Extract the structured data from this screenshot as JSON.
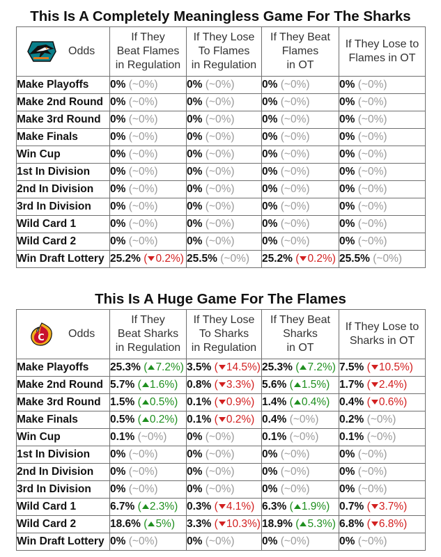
{
  "sharks": {
    "title": "This Is A Completely Meaningless Game For The Sharks",
    "logo_icon": "sharks-logo-icon",
    "odds_label": "Odds",
    "headers": [
      [
        "If They",
        "Beat Flames",
        "in Regulation"
      ],
      [
        "If They Lose",
        "To Flames",
        "in Regulation"
      ],
      [
        "If They Beat",
        "Flames",
        "in OT"
      ],
      [
        "If They Lose to",
        "Flames in OT"
      ]
    ],
    "rows": [
      {
        "label": "Make Playoffs",
        "cells": [
          {
            "value": "0%",
            "dir": "none",
            "change": "~0%"
          },
          {
            "value": "0%",
            "dir": "none",
            "change": "~0%"
          },
          {
            "value": "0%",
            "dir": "none",
            "change": "~0%"
          },
          {
            "value": "0%",
            "dir": "none",
            "change": "~0%"
          }
        ]
      },
      {
        "label": "Make 2nd Round",
        "cells": [
          {
            "value": "0%",
            "dir": "none",
            "change": "~0%"
          },
          {
            "value": "0%",
            "dir": "none",
            "change": "~0%"
          },
          {
            "value": "0%",
            "dir": "none",
            "change": "~0%"
          },
          {
            "value": "0%",
            "dir": "none",
            "change": "~0%"
          }
        ]
      },
      {
        "label": "Make 3rd Round",
        "cells": [
          {
            "value": "0%",
            "dir": "none",
            "change": "~0%"
          },
          {
            "value": "0%",
            "dir": "none",
            "change": "~0%"
          },
          {
            "value": "0%",
            "dir": "none",
            "change": "~0%"
          },
          {
            "value": "0%",
            "dir": "none",
            "change": "~0%"
          }
        ]
      },
      {
        "label": "Make Finals",
        "cells": [
          {
            "value": "0%",
            "dir": "none",
            "change": "~0%"
          },
          {
            "value": "0%",
            "dir": "none",
            "change": "~0%"
          },
          {
            "value": "0%",
            "dir": "none",
            "change": "~0%"
          },
          {
            "value": "0%",
            "dir": "none",
            "change": "~0%"
          }
        ]
      },
      {
        "label": "Win Cup",
        "cells": [
          {
            "value": "0%",
            "dir": "none",
            "change": "~0%"
          },
          {
            "value": "0%",
            "dir": "none",
            "change": "~0%"
          },
          {
            "value": "0%",
            "dir": "none",
            "change": "~0%"
          },
          {
            "value": "0%",
            "dir": "none",
            "change": "~0%"
          }
        ]
      },
      {
        "label": "1st In Division",
        "cells": [
          {
            "value": "0%",
            "dir": "none",
            "change": "~0%"
          },
          {
            "value": "0%",
            "dir": "none",
            "change": "~0%"
          },
          {
            "value": "0%",
            "dir": "none",
            "change": "~0%"
          },
          {
            "value": "0%",
            "dir": "none",
            "change": "~0%"
          }
        ]
      },
      {
        "label": "2nd In Division",
        "cells": [
          {
            "value": "0%",
            "dir": "none",
            "change": "~0%"
          },
          {
            "value": "0%",
            "dir": "none",
            "change": "~0%"
          },
          {
            "value": "0%",
            "dir": "none",
            "change": "~0%"
          },
          {
            "value": "0%",
            "dir": "none",
            "change": "~0%"
          }
        ]
      },
      {
        "label": "3rd In Division",
        "cells": [
          {
            "value": "0%",
            "dir": "none",
            "change": "~0%"
          },
          {
            "value": "0%",
            "dir": "none",
            "change": "~0%"
          },
          {
            "value": "0%",
            "dir": "none",
            "change": "~0%"
          },
          {
            "value": "0%",
            "dir": "none",
            "change": "~0%"
          }
        ]
      },
      {
        "label": "Wild Card 1",
        "cells": [
          {
            "value": "0%",
            "dir": "none",
            "change": "~0%"
          },
          {
            "value": "0%",
            "dir": "none",
            "change": "~0%"
          },
          {
            "value": "0%",
            "dir": "none",
            "change": "~0%"
          },
          {
            "value": "0%",
            "dir": "none",
            "change": "~0%"
          }
        ]
      },
      {
        "label": "Wild Card 2",
        "cells": [
          {
            "value": "0%",
            "dir": "none",
            "change": "~0%"
          },
          {
            "value": "0%",
            "dir": "none",
            "change": "~0%"
          },
          {
            "value": "0%",
            "dir": "none",
            "change": "~0%"
          },
          {
            "value": "0%",
            "dir": "none",
            "change": "~0%"
          }
        ]
      },
      {
        "label": "Win Draft Lottery",
        "cells": [
          {
            "value": "25.2%",
            "dir": "down",
            "change": "0.2%"
          },
          {
            "value": "25.5%",
            "dir": "none",
            "change": "~0%"
          },
          {
            "value": "25.2%",
            "dir": "down",
            "change": "0.2%"
          },
          {
            "value": "25.5%",
            "dir": "none",
            "change": "~0%"
          }
        ]
      }
    ]
  },
  "flames": {
    "title": "This Is A Huge Game For The Flames",
    "logo_icon": "flames-logo-icon",
    "odds_label": "Odds",
    "headers": [
      [
        "If They",
        "Beat Sharks",
        "in Regulation"
      ],
      [
        "If They Lose",
        "To Sharks",
        "in Regulation"
      ],
      [
        "If They Beat",
        "Sharks",
        "in OT"
      ],
      [
        "If They Lose to",
        "Sharks in OT"
      ]
    ],
    "rows": [
      {
        "label": "Make Playoffs",
        "cells": [
          {
            "value": "25.3%",
            "dir": "up",
            "change": "7.2%"
          },
          {
            "value": "3.5%",
            "dir": "down",
            "change": "14.5%"
          },
          {
            "value": "25.3%",
            "dir": "up",
            "change": "7.2%"
          },
          {
            "value": "7.5%",
            "dir": "down",
            "change": "10.5%"
          }
        ]
      },
      {
        "label": "Make 2nd Round",
        "cells": [
          {
            "value": "5.7%",
            "dir": "up",
            "change": "1.6%"
          },
          {
            "value": "0.8%",
            "dir": "down",
            "change": "3.3%"
          },
          {
            "value": "5.6%",
            "dir": "up",
            "change": "1.5%"
          },
          {
            "value": "1.7%",
            "dir": "down",
            "change": "2.4%"
          }
        ]
      },
      {
        "label": "Make 3rd Round",
        "cells": [
          {
            "value": "1.5%",
            "dir": "up",
            "change": "0.5%"
          },
          {
            "value": "0.1%",
            "dir": "down",
            "change": "0.9%"
          },
          {
            "value": "1.4%",
            "dir": "up",
            "change": "0.4%"
          },
          {
            "value": "0.4%",
            "dir": "down",
            "change": "0.6%"
          }
        ]
      },
      {
        "label": "Make Finals",
        "cells": [
          {
            "value": "0.5%",
            "dir": "up",
            "change": "0.2%"
          },
          {
            "value": "0.1%",
            "dir": "down",
            "change": "0.2%"
          },
          {
            "value": "0.4%",
            "dir": "none",
            "change": "~0%"
          },
          {
            "value": "0.2%",
            "dir": "none",
            "change": "~0%"
          }
        ]
      },
      {
        "label": "Win Cup",
        "cells": [
          {
            "value": "0.1%",
            "dir": "none",
            "change": "~0%"
          },
          {
            "value": "0%",
            "dir": "none",
            "change": "~0%"
          },
          {
            "value": "0.1%",
            "dir": "none",
            "change": "~0%"
          },
          {
            "value": "0.1%",
            "dir": "none",
            "change": "~0%"
          }
        ]
      },
      {
        "label": "1st In Division",
        "cells": [
          {
            "value": "0%",
            "dir": "none",
            "change": "~0%"
          },
          {
            "value": "0%",
            "dir": "none",
            "change": "~0%"
          },
          {
            "value": "0%",
            "dir": "none",
            "change": "~0%"
          },
          {
            "value": "0%",
            "dir": "none",
            "change": "~0%"
          }
        ]
      },
      {
        "label": "2nd In Division",
        "cells": [
          {
            "value": "0%",
            "dir": "none",
            "change": "~0%"
          },
          {
            "value": "0%",
            "dir": "none",
            "change": "~0%"
          },
          {
            "value": "0%",
            "dir": "none",
            "change": "~0%"
          },
          {
            "value": "0%",
            "dir": "none",
            "change": "~0%"
          }
        ]
      },
      {
        "label": "3rd In Division",
        "cells": [
          {
            "value": "0%",
            "dir": "none",
            "change": "~0%"
          },
          {
            "value": "0%",
            "dir": "none",
            "change": "~0%"
          },
          {
            "value": "0%",
            "dir": "none",
            "change": "~0%"
          },
          {
            "value": "0%",
            "dir": "none",
            "change": "~0%"
          }
        ]
      },
      {
        "label": "Wild Card 1",
        "cells": [
          {
            "value": "6.7%",
            "dir": "up",
            "change": "2.3%"
          },
          {
            "value": "0.3%",
            "dir": "down",
            "change": "4.1%"
          },
          {
            "value": "6.3%",
            "dir": "up",
            "change": "1.9%"
          },
          {
            "value": "0.7%",
            "dir": "down",
            "change": "3.7%"
          }
        ]
      },
      {
        "label": "Wild Card 2",
        "cells": [
          {
            "value": "18.6%",
            "dir": "up",
            "change": "5%"
          },
          {
            "value": "3.3%",
            "dir": "down",
            "change": "10.3%"
          },
          {
            "value": "18.9%",
            "dir": "up",
            "change": "5.3%"
          },
          {
            "value": "6.8%",
            "dir": "down",
            "change": "6.8%"
          }
        ]
      },
      {
        "label": "Win Draft Lottery",
        "cells": [
          {
            "value": "0%",
            "dir": "none",
            "change": "~0%"
          },
          {
            "value": "0%",
            "dir": "none",
            "change": "~0%"
          },
          {
            "value": "0%",
            "dir": "none",
            "change": "~0%"
          },
          {
            "value": "0%",
            "dir": "none",
            "change": "~0%"
          }
        ]
      }
    ]
  },
  "colors": {
    "up": "#1f8f1f",
    "down": "#d21f1f",
    "neutral": "#9a9a9a",
    "border": "#6e6e6e"
  }
}
